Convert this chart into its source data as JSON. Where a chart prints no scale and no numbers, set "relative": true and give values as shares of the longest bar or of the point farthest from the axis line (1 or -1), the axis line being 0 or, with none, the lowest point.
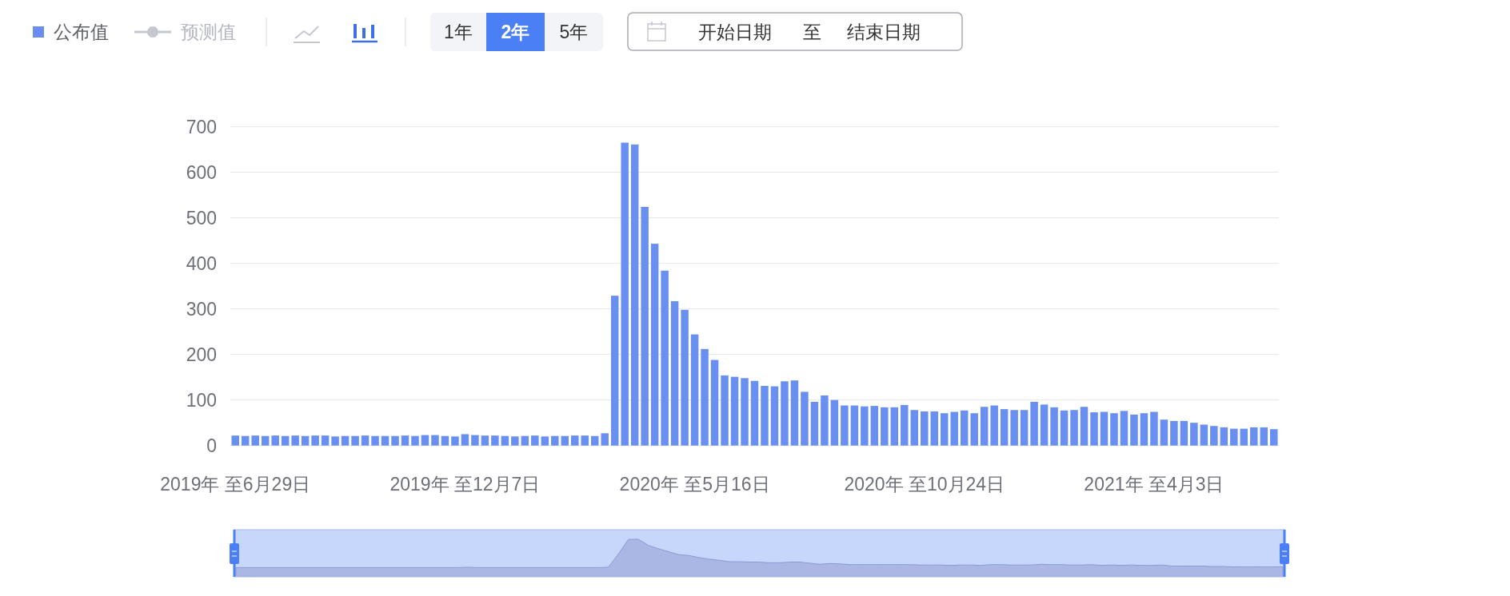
{
  "chart_data": [
    {
      "type": "bar",
      "categories": [
        "2019年 至6月29日",
        null,
        null,
        null,
        null,
        null,
        null,
        null,
        null,
        null,
        null,
        null,
        null,
        null,
        null,
        null,
        null,
        null,
        null,
        null,
        null,
        null,
        null,
        "2019年 至12月7日",
        null,
        null,
        null,
        null,
        null,
        null,
        null,
        null,
        null,
        null,
        null,
        null,
        null,
        null,
        null,
        null,
        null,
        null,
        null,
        null,
        null,
        null,
        "2020年 至5月16日",
        null,
        null,
        null,
        null,
        null,
        null,
        null,
        null,
        null,
        null,
        null,
        null,
        null,
        null,
        null,
        null,
        null,
        null,
        null,
        null,
        null,
        null,
        "2020年 至10月24日",
        null,
        null,
        null,
        null,
        null,
        null,
        null,
        null,
        null,
        null,
        null,
        null,
        null,
        null,
        null,
        null,
        null,
        null,
        null,
        null,
        null,
        null,
        "2021年 至4月3日",
        null,
        null,
        null,
        null,
        null,
        null,
        null,
        null,
        null,
        null,
        null,
        null
      ],
      "series": [
        {
          "name": "公布值",
          "color": "#6990f0",
          "values": [
            22,
            21,
            22,
            21,
            22,
            21,
            22,
            21,
            22,
            22,
            20,
            21,
            21,
            22,
            21,
            21,
            21,
            22,
            21,
            23,
            23,
            21,
            20,
            25,
            23,
            22,
            22,
            21,
            20,
            21,
            22,
            20,
            21,
            21,
            22,
            22,
            21,
            27,
            329,
            665,
            661,
            524,
            443,
            384,
            317,
            298,
            244,
            212,
            188,
            154,
            151,
            148,
            142,
            131,
            130,
            141,
            143,
            118,
            96,
            110,
            100,
            88,
            88,
            86,
            87,
            84,
            84,
            89,
            78,
            75,
            75,
            71,
            74,
            77,
            71,
            85,
            88,
            80,
            78,
            78,
            96,
            90,
            84,
            77,
            78,
            85,
            73,
            74,
            71,
            76,
            68,
            71,
            74,
            57,
            54,
            54,
            50,
            46,
            43,
            40,
            37,
            37,
            40,
            40,
            36
          ]
        },
        {
          "name": "预测值",
          "type": "line",
          "marker": "circle",
          "color": "#c4c7cf",
          "values": [
            null,
            null,
            null,
            null,
            null,
            null,
            null,
            null,
            null,
            null,
            null,
            null,
            null,
            null,
            null,
            null,
            null,
            null,
            null,
            null,
            null,
            null,
            null,
            null,
            null,
            null,
            null,
            null,
            null,
            null,
            null,
            null,
            null,
            null,
            null,
            null,
            null,
            null,
            null,
            null,
            null,
            null,
            null,
            null,
            null,
            null,
            null,
            null,
            null,
            null,
            null,
            null,
            null,
            null,
            null,
            null,
            null,
            null,
            null,
            null,
            null,
            null,
            null,
            null,
            null,
            null,
            null,
            null,
            null,
            null,
            null,
            null,
            null,
            null,
            null,
            null,
            null,
            null,
            null,
            null,
            null,
            null,
            null,
            null,
            null,
            null,
            null,
            null,
            null,
            null,
            null,
            null,
            null,
            null,
            null,
            null,
            null,
            null,
            null,
            null,
            null,
            null,
            null,
            null,
            null
          ]
        }
      ],
      "ylim": [
        0,
        700
      ],
      "yticks": [
        0,
        100,
        200,
        300,
        400,
        500,
        600,
        700
      ],
      "grid": "y",
      "legend": "top left",
      "annotations": [
        "1年",
        "2年",
        "5年",
        "开始日期",
        "至",
        "结束日期"
      ]
    },
    {
      "type": "area",
      "relative": true,
      "color": "#aab7e5",
      "categories": [
        null,
        null,
        null,
        null,
        null,
        null,
        null,
        null,
        null,
        null,
        null,
        null,
        null,
        null,
        null,
        null,
        null,
        null,
        null,
        null,
        null,
        null,
        null,
        null,
        null,
        null,
        null,
        null,
        null,
        null,
        null,
        null,
        null,
        null,
        null,
        null,
        null,
        null,
        null,
        null,
        null,
        null,
        null,
        null,
        null,
        null,
        null,
        null,
        null,
        null,
        null,
        null,
        null,
        null,
        null,
        null,
        null,
        null,
        null,
        null,
        null,
        null,
        null,
        null,
        null,
        null,
        null,
        null,
        null,
        null,
        null,
        null,
        null,
        null,
        null,
        null,
        null,
        null,
        null,
        null,
        null,
        null,
        null,
        null,
        null,
        null,
        null,
        null,
        null,
        null,
        null,
        null,
        null,
        null,
        null,
        null,
        null,
        null,
        null,
        null,
        null,
        null,
        null,
        null,
        null
      ],
      "values": [
        0.23,
        0.23,
        0.23,
        0.23,
        0.23,
        0.23,
        0.23,
        0.23,
        0.23,
        0.23,
        0.23,
        0.23,
        0.23,
        0.23,
        0.23,
        0.23,
        0.23,
        0.23,
        0.23,
        0.23,
        0.23,
        0.23,
        0.23,
        0.24,
        0.23,
        0.23,
        0.23,
        0.23,
        0.23,
        0.23,
        0.23,
        0.23,
        0.23,
        0.23,
        0.23,
        0.23,
        0.23,
        0.24,
        0.6,
        1,
        1,
        0.83,
        0.74,
        0.66,
        0.58,
        0.56,
        0.5,
        0.46,
        0.43,
        0.39,
        0.39,
        0.38,
        0.38,
        0.36,
        0.36,
        0.38,
        0.38,
        0.35,
        0.32,
        0.34,
        0.33,
        0.31,
        0.31,
        0.31,
        0.31,
        0.31,
        0.31,
        0.31,
        0.3,
        0.3,
        0.3,
        0.29,
        0.3,
        0.3,
        0.29,
        0.31,
        0.31,
        0.3,
        0.3,
        0.3,
        0.32,
        0.31,
        0.31,
        0.3,
        0.3,
        0.31,
        0.29,
        0.3,
        0.29,
        0.3,
        0.29,
        0.29,
        0.3,
        0.27,
        0.27,
        0.27,
        0.27,
        0.26,
        0.26,
        0.25,
        0.25,
        0.25,
        0.25,
        0.25,
        0.25
      ]
    }
  ]
}
